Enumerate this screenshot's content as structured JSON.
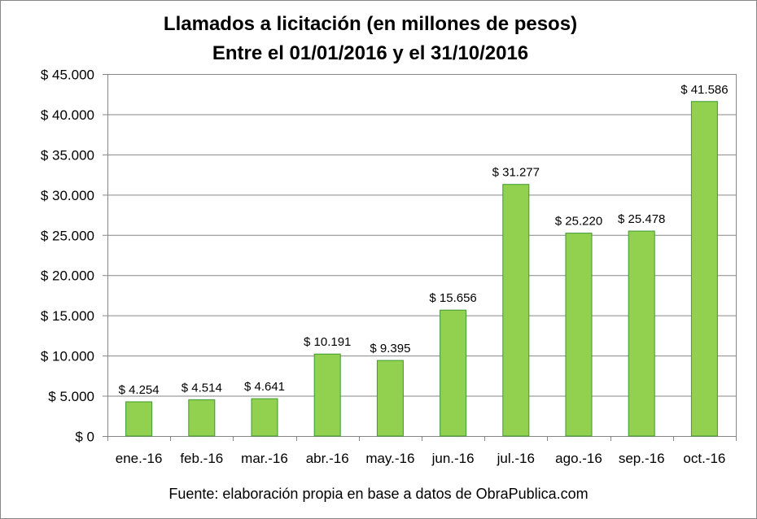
{
  "title_line1": "Llamados a licitación (en millones de pesos)",
  "title_line2": "Entre el 01/01/2016 y el 31/10/2016",
  "source": "Fuente: elaboración propia en base a datos de ObraPublica.com",
  "colors": {
    "bar_fill": "#92D050",
    "bar_stroke": "#3E9A2F",
    "grid": "#868686"
  },
  "chart_data": {
    "type": "bar",
    "title": "Llamados a licitación (en millones de pesos) Entre el 01/01/2016 y el 31/10/2016",
    "categories": [
      "ene.-16",
      "feb.-16",
      "mar.-16",
      "abr.-16",
      "may.-16",
      "jun.-16",
      "jul.-16",
      "ago.-16",
      "sep.-16",
      "oct.-16"
    ],
    "values": [
      4254,
      4514,
      4641,
      10191,
      9395,
      15656,
      31277,
      25220,
      25478,
      41586
    ],
    "data_labels": [
      "$ 4.254",
      "$ 4.514",
      "$ 4.641",
      "$ 10.191",
      "$ 9.395",
      "$ 15.656",
      "$ 31.277",
      "$ 25.220",
      "$ 25.478",
      "$ 41.586"
    ],
    "yticks": [
      0,
      5000,
      10000,
      15000,
      20000,
      25000,
      30000,
      35000,
      40000,
      45000
    ],
    "ytick_labels": [
      "$ 0",
      "$ 5.000",
      "$ 10.000",
      "$ 15.000",
      "$ 20.000",
      "$ 25.000",
      "$ 30.000",
      "$ 35.000",
      "$ 40.000",
      "$ 45.000"
    ],
    "ylim": [
      0,
      45000
    ],
    "xlabel": "",
    "ylabel": "",
    "grid": true,
    "legend": "none"
  }
}
